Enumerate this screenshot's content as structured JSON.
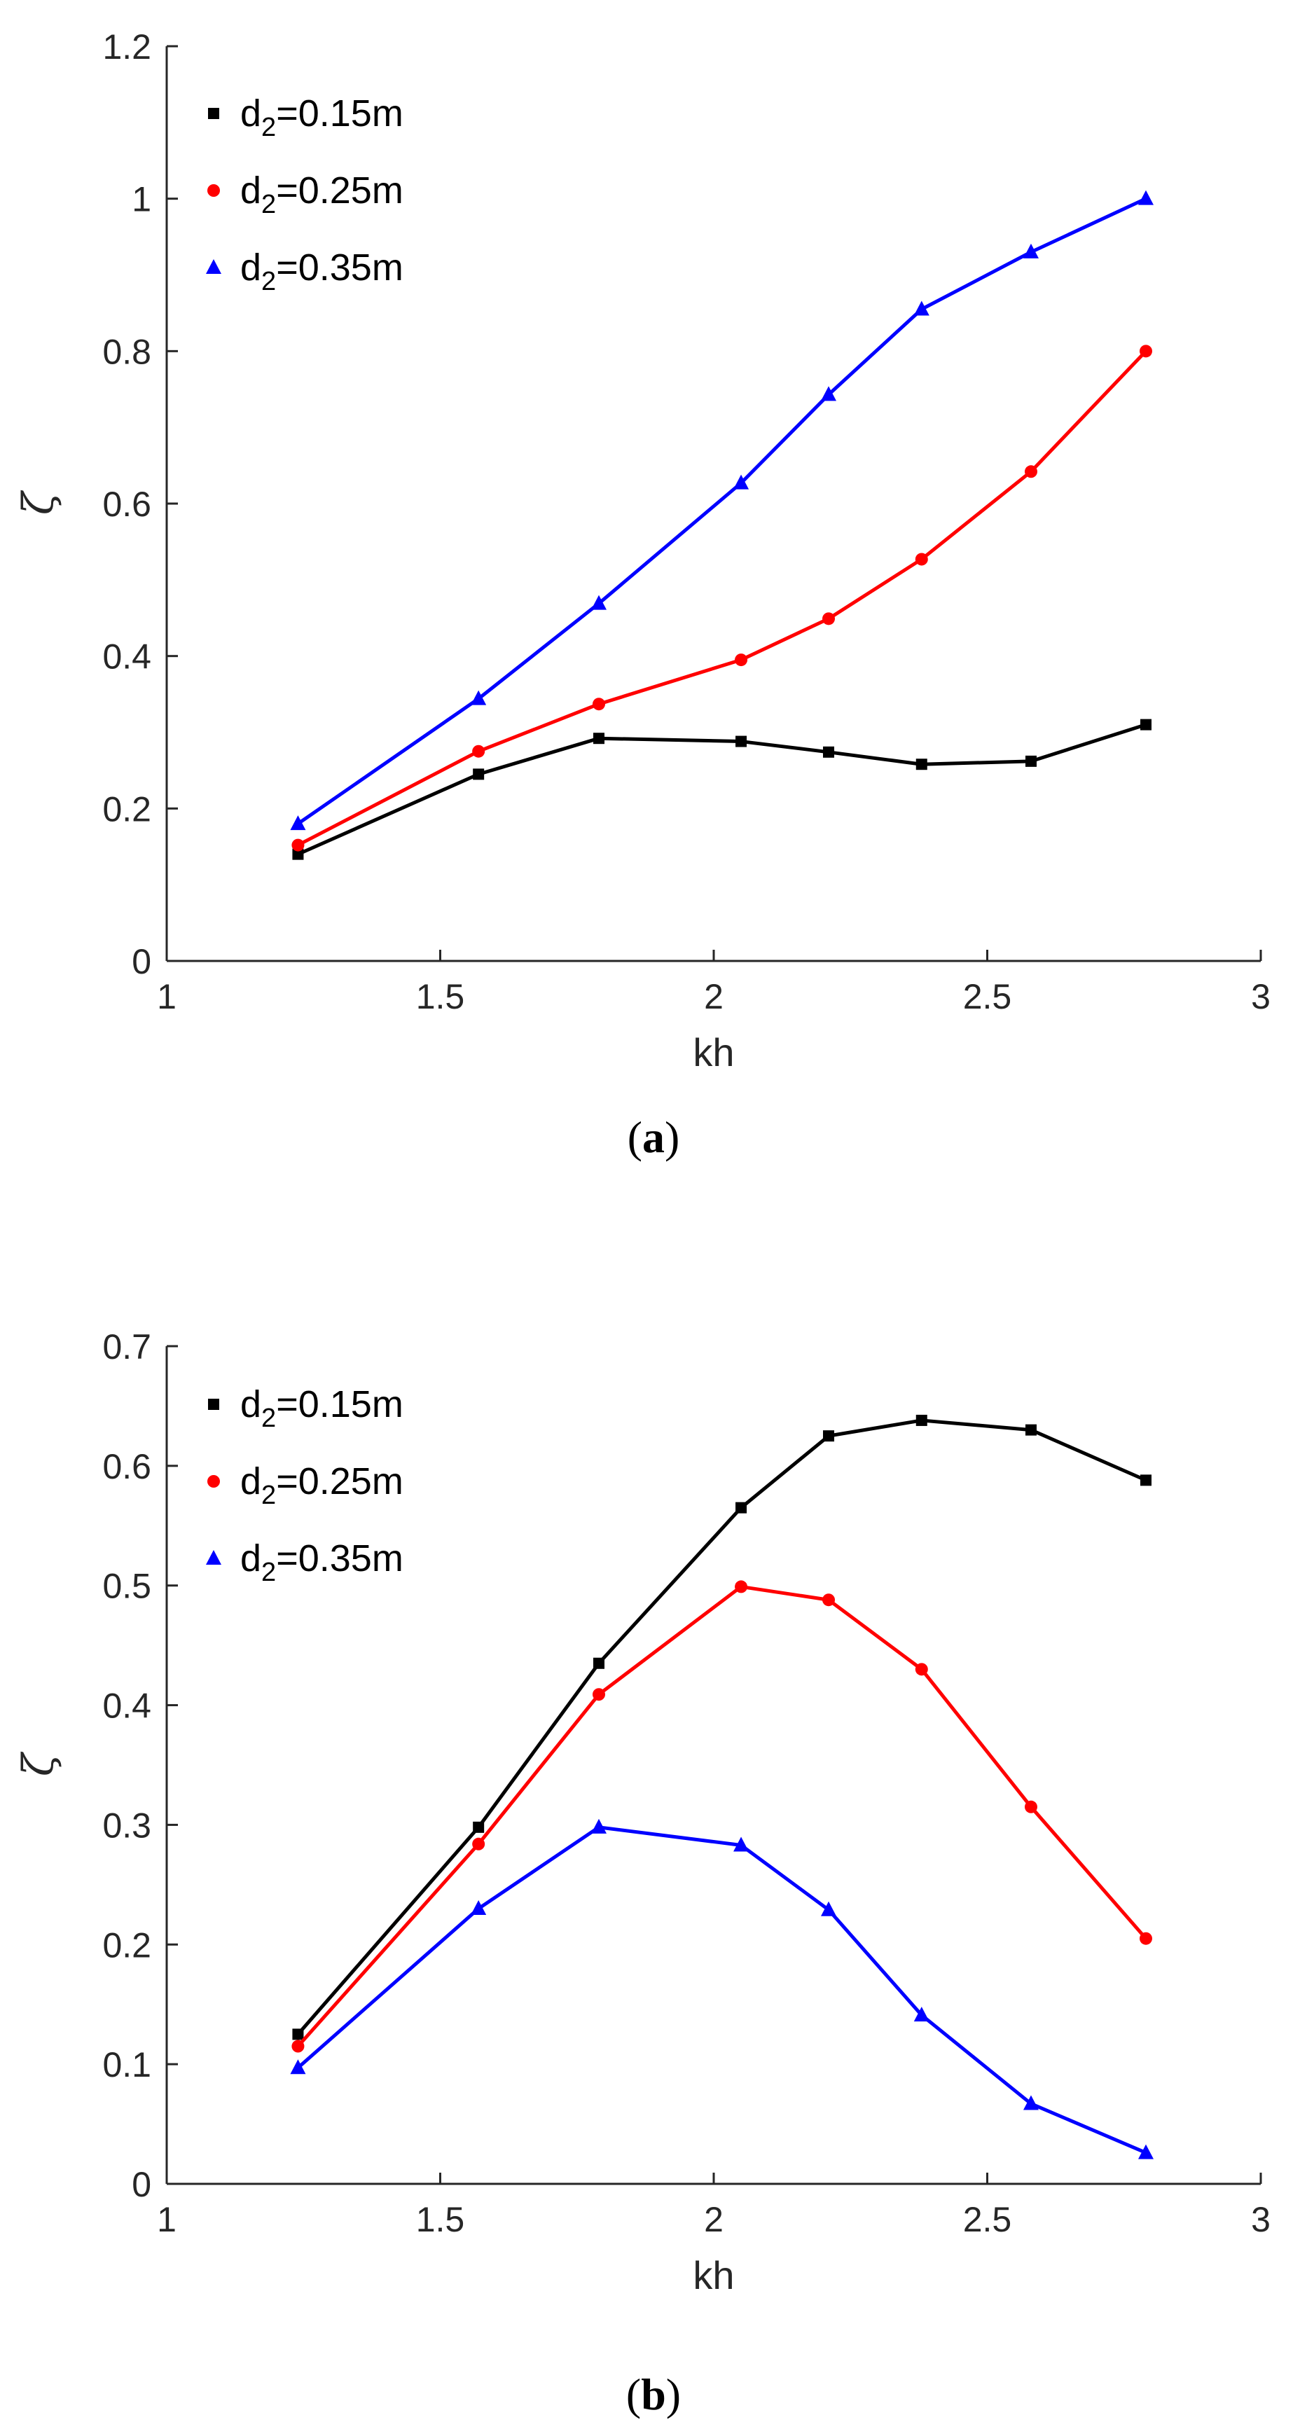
{
  "chart_data": [
    {
      "type": "line",
      "panel": "a",
      "caption": {
        "open": "(",
        "letter": "a",
        "close": ")"
      },
      "x": [
        1.24,
        1.57,
        1.79,
        2.05,
        2.21,
        2.38,
        2.58,
        2.79
      ],
      "xlabel": "kh",
      "ylabel": "ζ",
      "xlim": [
        1,
        3
      ],
      "ylim": [
        0,
        1.2
      ],
      "xticks": [
        1,
        1.5,
        2,
        2.5,
        3
      ],
      "xtick_labels": [
        "1",
        "1.5",
        "2",
        "2.5",
        "3"
      ],
      "yticks": [
        0,
        0.2,
        0.4,
        0.6,
        0.8,
        1,
        1.2
      ],
      "ytick_labels": [
        "0",
        "0.2",
        "0.4",
        "0.6",
        "0.8",
        "1",
        "1.2"
      ],
      "legend_position": "top-left",
      "series": [
        {
          "name": "d2=0.15m",
          "label_base": "d",
          "label_sub": "2",
          "label_rest": "=0.15m",
          "color": "#000000",
          "marker": "square",
          "values": [
            0.14,
            0.245,
            0.292,
            0.288,
            0.274,
            0.258,
            0.262,
            0.31
          ]
        },
        {
          "name": "d2=0.25m",
          "label_base": "d",
          "label_sub": "2",
          "label_rest": "=0.25m",
          "color": "#ff0000",
          "marker": "circle",
          "values": [
            0.152,
            0.275,
            0.337,
            0.395,
            0.449,
            0.527,
            0.642,
            0.8
          ]
        },
        {
          "name": "d2=0.35m",
          "label_base": "d",
          "label_sub": "2",
          "label_rest": "=0.35m",
          "color": "#0000ff",
          "marker": "triangle",
          "values": [
            0.18,
            0.344,
            0.469,
            0.627,
            0.743,
            0.855,
            0.93,
            1.0
          ]
        }
      ]
    },
    {
      "type": "line",
      "panel": "b",
      "caption": {
        "open": "(",
        "letter": "b",
        "close": ")"
      },
      "x": [
        1.24,
        1.57,
        1.79,
        2.05,
        2.21,
        2.38,
        2.58,
        2.79
      ],
      "xlabel": "kh",
      "ylabel": "ζ",
      "xlim": [
        1,
        3
      ],
      "ylim": [
        0,
        0.7
      ],
      "xticks": [
        1,
        1.5,
        2,
        2.5,
        3
      ],
      "xtick_labels": [
        "1",
        "1.5",
        "2",
        "2.5",
        "3"
      ],
      "yticks": [
        0,
        0.1,
        0.2,
        0.3,
        0.4,
        0.5,
        0.6,
        0.7
      ],
      "ytick_labels": [
        "0",
        "0.1",
        "0.2",
        "0.3",
        "0.4",
        "0.5",
        "0.6",
        "0.7"
      ],
      "legend_position": "top-left",
      "series": [
        {
          "name": "d2=0.15m",
          "label_base": "d",
          "label_sub": "2",
          "label_rest": "=0.15m",
          "color": "#000000",
          "marker": "square",
          "values": [
            0.125,
            0.298,
            0.435,
            0.565,
            0.625,
            0.638,
            0.63,
            0.588
          ]
        },
        {
          "name": "d2=0.25m",
          "label_base": "d",
          "label_sub": "2",
          "label_rest": "=0.25m",
          "color": "#ff0000",
          "marker": "circle",
          "values": [
            0.115,
            0.284,
            0.409,
            0.499,
            0.488,
            0.43,
            0.315,
            0.205
          ]
        },
        {
          "name": "d2=0.35m",
          "label_base": "d",
          "label_sub": "2",
          "label_rest": "=0.35m",
          "color": "#0000ff",
          "marker": "triangle",
          "values": [
            0.097,
            0.23,
            0.298,
            0.283,
            0.229,
            0.141,
            0.067,
            0.026
          ]
        }
      ]
    }
  ]
}
